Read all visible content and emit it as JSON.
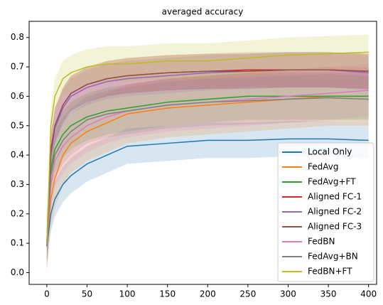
{
  "chart_data": {
    "type": "line",
    "title": "averaged accuracy",
    "x": [
      0,
      5,
      10,
      20,
      30,
      50,
      75,
      100,
      150,
      200,
      250,
      300,
      350,
      400
    ],
    "xlim": [
      -22,
      410
    ],
    "xticks": [
      0,
      50,
      100,
      150,
      200,
      250,
      300,
      350,
      400
    ],
    "ylim": [
      -0.04,
      0.855
    ],
    "yticks": [
      {
        "value": 0,
        "label": "0.0"
      },
      0.1,
      0.2,
      0.3,
      0.4,
      0.5,
      0.6,
      0.7,
      0.8
    ],
    "legend": "lower right",
    "series": [
      {
        "name": "Local Only",
        "color": "#1f77b4",
        "std": 0.06,
        "values": [
          0.09,
          0.2,
          0.25,
          0.3,
          0.33,
          0.37,
          0.4,
          0.43,
          0.44,
          0.45,
          0.45,
          0.455,
          0.455,
          0.45
        ]
      },
      {
        "name": "FedAvg",
        "color": "#ff7f0e",
        "std": 0.1,
        "values": [
          0.1,
          0.25,
          0.32,
          0.4,
          0.44,
          0.48,
          0.51,
          0.54,
          0.56,
          0.57,
          0.58,
          0.59,
          0.6,
          0.6
        ]
      },
      {
        "name": "FedAvg+FT",
        "color": "#2ca02c",
        "std": 0.08,
        "values": [
          0.1,
          0.35,
          0.42,
          0.47,
          0.5,
          0.53,
          0.55,
          0.56,
          0.58,
          0.59,
          0.6,
          0.6,
          0.6,
          0.6
        ]
      },
      {
        "name": "Aligned FC-1",
        "color": "#d62728",
        "std": 0.06,
        "values": [
          0.1,
          0.42,
          0.5,
          0.57,
          0.61,
          0.64,
          0.66,
          0.67,
          0.68,
          0.685,
          0.69,
          0.69,
          0.69,
          0.685
        ]
      },
      {
        "name": "Aligned FC-2",
        "color": "#9467bd",
        "std": 0.06,
        "values": [
          0.09,
          0.4,
          0.49,
          0.56,
          0.6,
          0.63,
          0.65,
          0.66,
          0.67,
          0.68,
          0.685,
          0.69,
          0.69,
          0.68
        ]
      },
      {
        "name": "Aligned FC-3",
        "color": "#8c564b",
        "std": 0.06,
        "values": [
          0.1,
          0.41,
          0.5,
          0.57,
          0.61,
          0.64,
          0.66,
          0.67,
          0.68,
          0.685,
          0.685,
          0.69,
          0.69,
          0.685
        ]
      },
      {
        "name": "FedBN",
        "color": "#e377c2",
        "std": 0.09,
        "values": [
          0.1,
          0.3,
          0.38,
          0.43,
          0.46,
          0.5,
          0.53,
          0.55,
          0.57,
          0.58,
          0.59,
          0.6,
          0.61,
          0.62
        ]
      },
      {
        "name": "FedAvg+BN",
        "color": "#7f7f7f",
        "std": 0.08,
        "values": [
          0.1,
          0.33,
          0.4,
          0.45,
          0.48,
          0.52,
          0.54,
          0.55,
          0.57,
          0.58,
          0.585,
          0.59,
          0.595,
          0.59
        ]
      },
      {
        "name": "FedBN+FT",
        "color": "#bcbd22",
        "std": 0.06,
        "values": [
          0.1,
          0.5,
          0.6,
          0.66,
          0.68,
          0.7,
          0.71,
          0.71,
          0.72,
          0.72,
          0.73,
          0.74,
          0.745,
          0.75
        ]
      }
    ]
  }
}
